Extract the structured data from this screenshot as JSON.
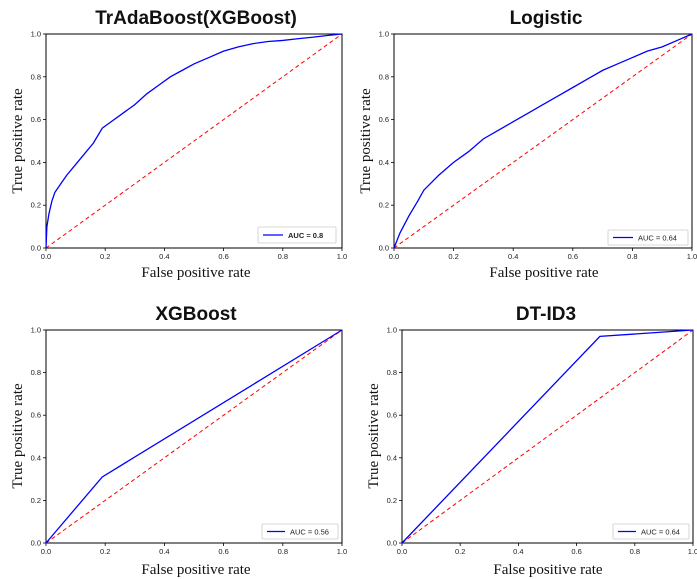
{
  "chart_data": [
    {
      "type": "line",
      "title": "TrAdaBoost(XGBoost)",
      "xlabel": "False positive rate",
      "ylabel": "True positive rate",
      "xlim": [
        0,
        1
      ],
      "ylim": [
        0,
        1
      ],
      "xticks": [
        "0.0",
        "0.2",
        "0.4",
        "0.6",
        "0.8",
        "1.0"
      ],
      "yticks": [
        "0.0",
        "0.2",
        "0.4",
        "0.6",
        "0.8",
        "1.0"
      ],
      "legend_position": "lower-right",
      "series": [
        {
          "name": "AUC = 0.8",
          "color": "#0000ff",
          "style": "solid",
          "x": [
            0,
            0.003,
            0.01,
            0.02,
            0.03,
            0.05,
            0.07,
            0.1,
            0.13,
            0.16,
            0.19,
            0.22,
            0.26,
            0.3,
            0.34,
            0.38,
            0.42,
            0.46,
            0.5,
            0.55,
            0.6,
            0.65,
            0.7,
            0.75,
            0.8,
            0.85,
            0.9,
            0.95,
            1.0
          ],
          "y": [
            0,
            0.1,
            0.16,
            0.22,
            0.26,
            0.3,
            0.34,
            0.39,
            0.44,
            0.49,
            0.56,
            0.59,
            0.63,
            0.67,
            0.72,
            0.76,
            0.8,
            0.83,
            0.86,
            0.89,
            0.92,
            0.94,
            0.955,
            0.965,
            0.97,
            0.978,
            0.985,
            0.993,
            1.0
          ]
        },
        {
          "name": "",
          "color": "#ff0000",
          "style": "dashed",
          "x": [
            0,
            1
          ],
          "y": [
            0,
            1
          ]
        }
      ]
    },
    {
      "type": "line",
      "title": "Logistic",
      "xlabel": "False positive rate",
      "ylabel": "True positive rate",
      "xlim": [
        0,
        1
      ],
      "ylim": [
        0,
        1
      ],
      "xticks": [
        "0.0",
        "0.2",
        "0.4",
        "0.6",
        "0.8",
        "1.0"
      ],
      "yticks": [
        "0.0",
        "0.2",
        "0.4",
        "0.6",
        "0.8",
        "1.0"
      ],
      "legend_position": "lower-right",
      "series": [
        {
          "name": "AUC = 0.64",
          "color": "#0000ff",
          "style": "solid",
          "x": [
            0,
            0.02,
            0.05,
            0.08,
            0.1,
            0.15,
            0.2,
            0.25,
            0.3,
            0.35,
            0.4,
            0.45,
            0.5,
            0.55,
            0.6,
            0.65,
            0.7,
            0.75,
            0.8,
            0.85,
            0.9,
            0.95,
            1.0
          ],
          "y": [
            0,
            0.07,
            0.15,
            0.22,
            0.27,
            0.34,
            0.4,
            0.45,
            0.51,
            0.55,
            0.59,
            0.63,
            0.67,
            0.71,
            0.75,
            0.79,
            0.83,
            0.86,
            0.89,
            0.92,
            0.94,
            0.97,
            1.0
          ]
        },
        {
          "name": "",
          "color": "#ff0000",
          "style": "dashed",
          "x": [
            0,
            1
          ],
          "y": [
            0,
            1
          ]
        }
      ]
    },
    {
      "type": "line",
      "title": "XGBoost",
      "xlabel": "False positive rate",
      "ylabel": "True positive rate",
      "xlim": [
        0,
        1
      ],
      "ylim": [
        0,
        1
      ],
      "xticks": [
        "0.0",
        "0.2",
        "0.4",
        "0.6",
        "0.8",
        "1.0"
      ],
      "yticks": [
        "0.0",
        "0.2",
        "0.4",
        "0.6",
        "0.8",
        "1.0"
      ],
      "legend_position": "lower-right",
      "series": [
        {
          "name": "AUC = 0.56",
          "color": "#0000ff",
          "style": "solid",
          "x": [
            0,
            0.19,
            1.0
          ],
          "y": [
            0,
            0.31,
            1.0
          ]
        },
        {
          "name": "",
          "color": "#ff0000",
          "style": "dashed",
          "x": [
            0,
            1
          ],
          "y": [
            0,
            1
          ]
        }
      ]
    },
    {
      "type": "line",
      "title": "DT-ID3",
      "xlabel": "False positive rate",
      "ylabel": "True positive rate",
      "xlim": [
        0,
        1
      ],
      "ylim": [
        0,
        1
      ],
      "xticks": [
        "0.0",
        "0.2",
        "0.4",
        "0.6",
        "0.8",
        "1.0"
      ],
      "yticks": [
        "0.0",
        "0.2",
        "0.4",
        "0.6",
        "0.8",
        "1.0"
      ],
      "legend_position": "lower-right",
      "series": [
        {
          "name": "AUC = 0.64",
          "color": "#0000ff",
          "style": "solid",
          "x": [
            0,
            0.68,
            1.0
          ],
          "y": [
            0,
            0.97,
            1.0
          ]
        },
        {
          "name": "",
          "color": "#ff0000",
          "style": "dashed",
          "x": [
            0,
            1
          ],
          "y": [
            0,
            1
          ]
        }
      ]
    }
  ]
}
